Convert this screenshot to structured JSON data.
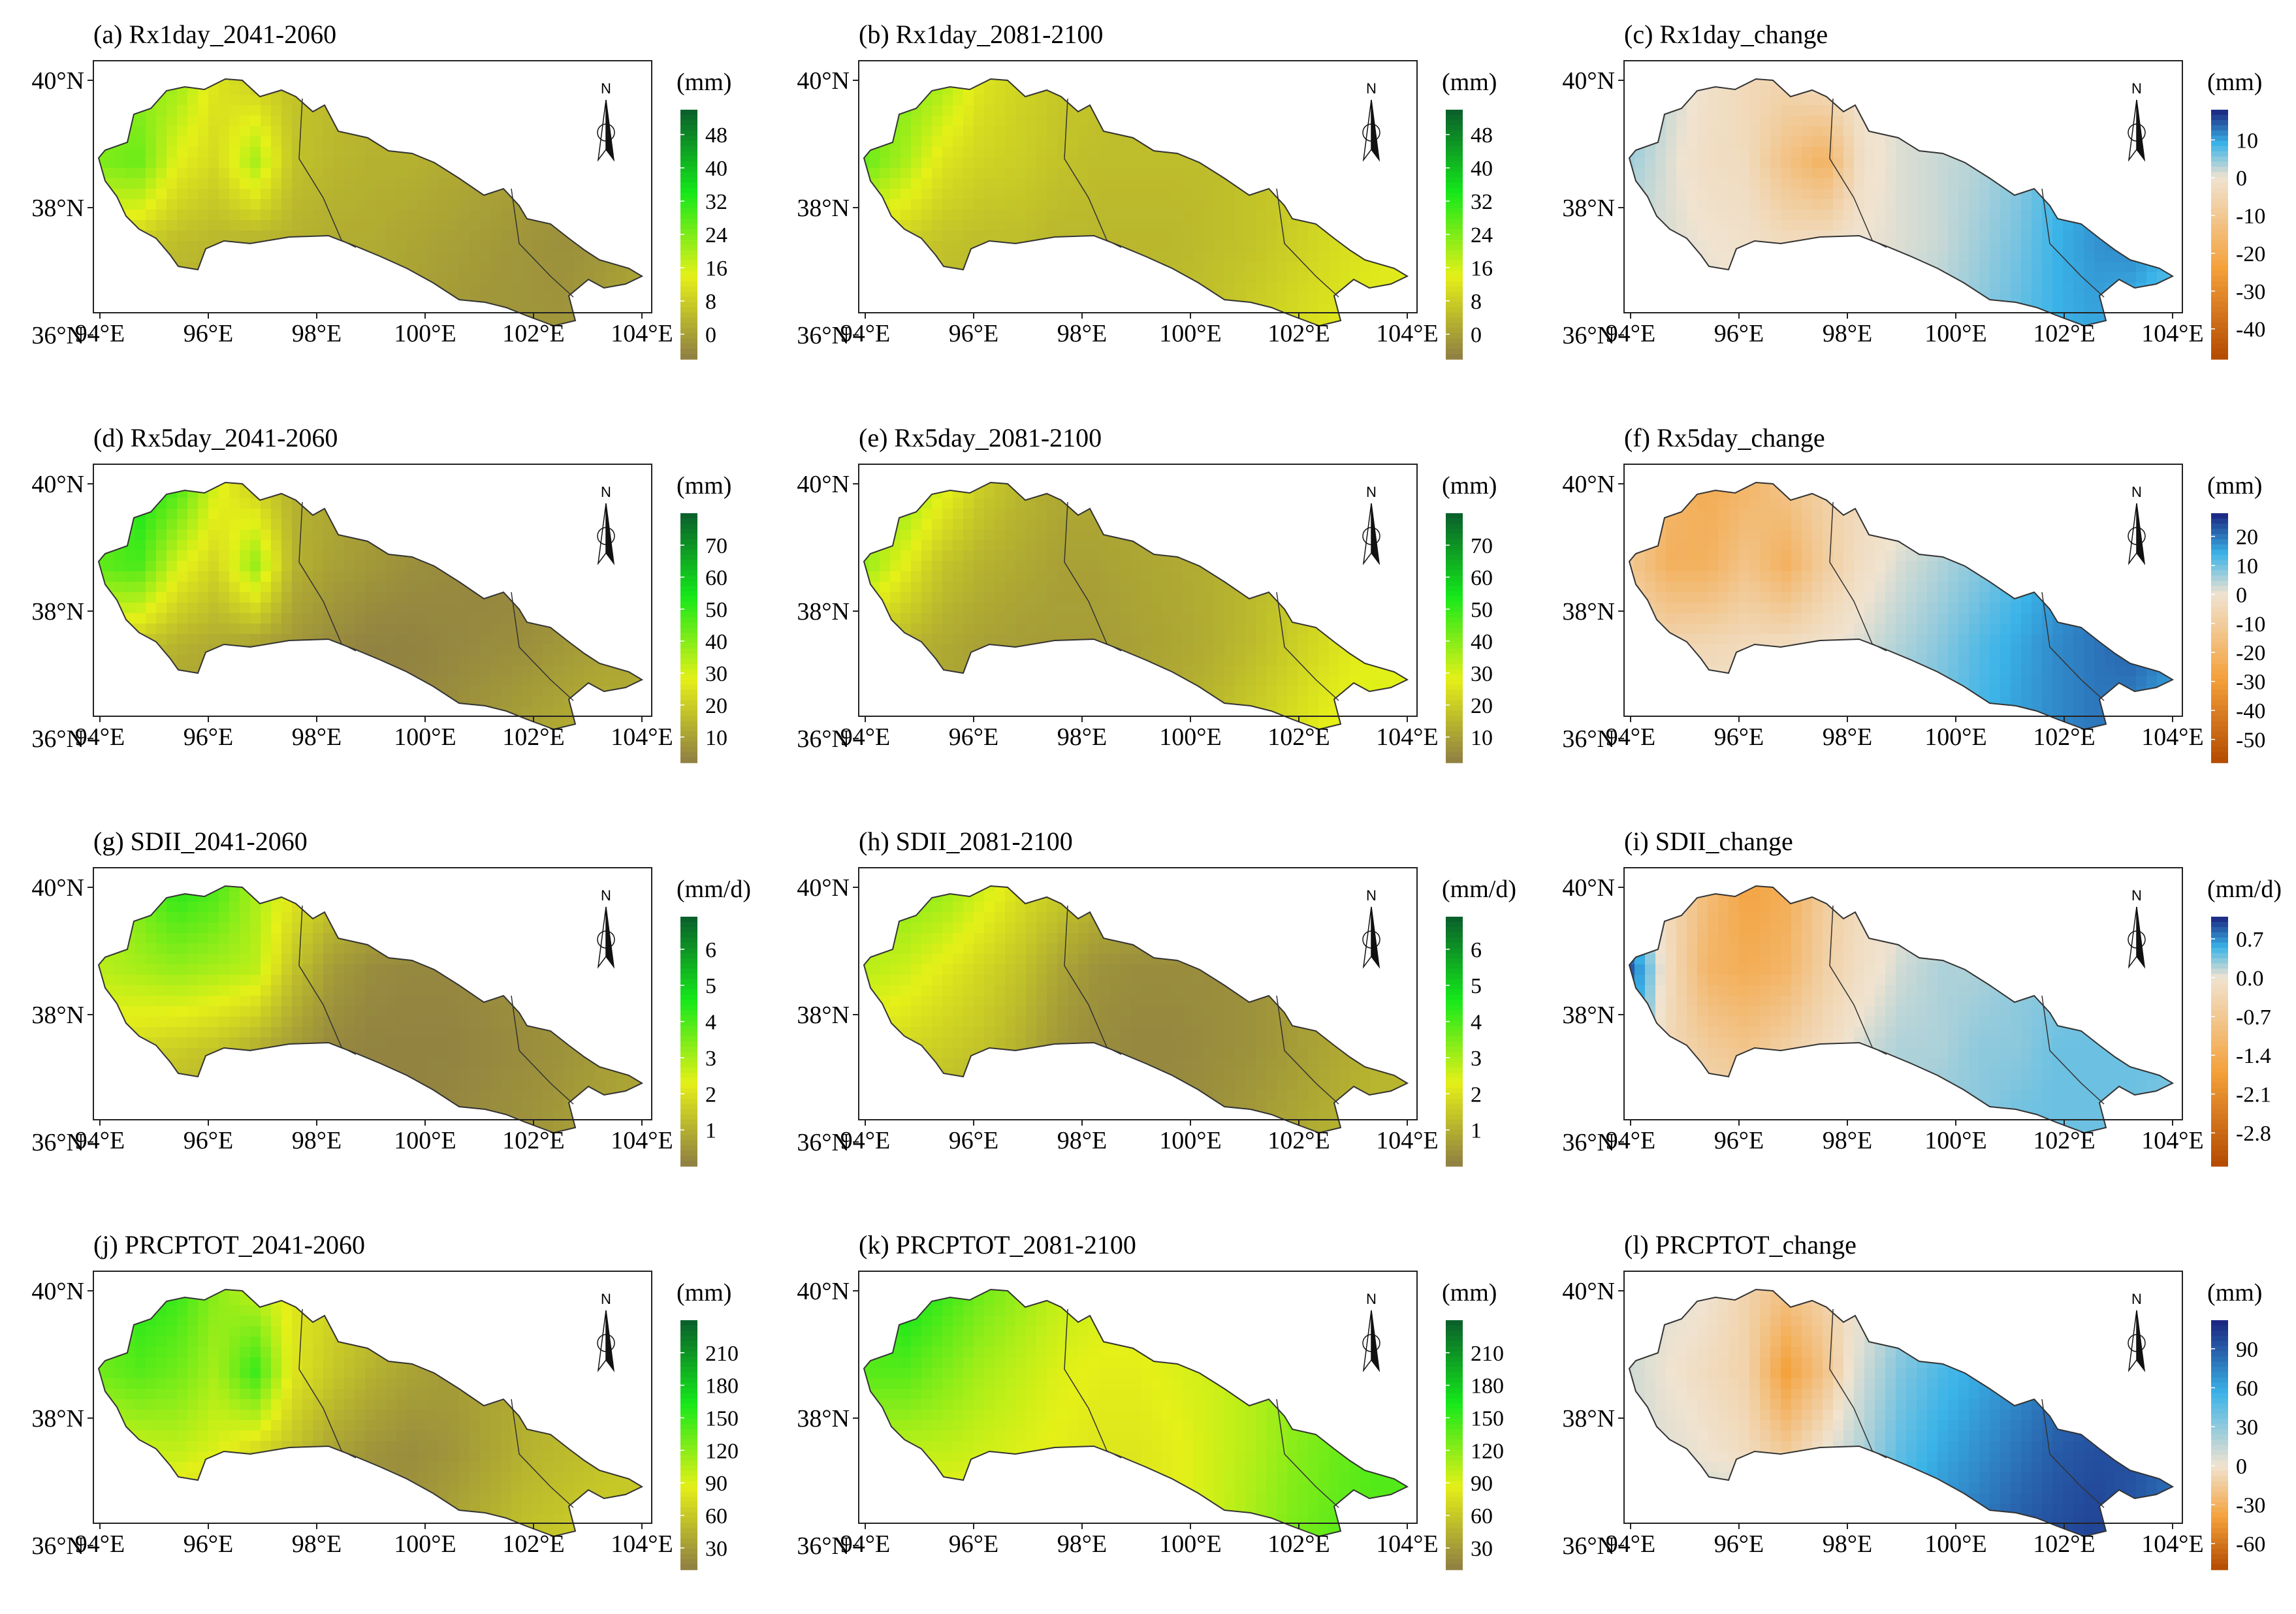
{
  "figure": {
    "colors": {
      "frame": "#222222",
      "region_outline": "#333333",
      "precip_ramp": [
        "#8e7e43",
        "#e5f018",
        "#15e81a",
        "#0a5e2c"
      ],
      "change_ramp": [
        "#b34a00",
        "#f4a13a",
        "#f0e3d0",
        "#3ab3e8",
        "#1a237e"
      ]
    },
    "icons": {
      "north_arrow": "north-arrow-icon"
    }
  },
  "chart_data": [
    {
      "id": "a",
      "type": "heatmap",
      "title": "(a) Rx1day_2041-2060",
      "unit": "(mm)",
      "colormap": "precip",
      "legend_ticks": [
        "48",
        "40",
        "32",
        "24",
        "16",
        "8",
        "0"
      ],
      "legend_range": [
        -6,
        54
      ],
      "xticks": [
        "94°E",
        "96°E",
        "98°E",
        "100°E",
        "102°E",
        "104°E"
      ],
      "yticks": [
        "40°N",
        "38°N",
        "36°N"
      ],
      "north_label": "N",
      "grid_values": [
        [
          20,
          22,
          21,
          12,
          8,
          6,
          5,
          4,
          4,
          3,
          2,
          1,
          1,
          0,
          0
        ],
        [
          24,
          26,
          14,
          10,
          20,
          6,
          4,
          3,
          3,
          2,
          1,
          0,
          -1,
          -2,
          -1
        ],
        [
          10,
          8,
          5,
          4,
          3,
          3,
          2,
          2,
          1,
          0,
          -1,
          -2,
          -3,
          -2,
          0
        ],
        [
          3,
          2,
          2,
          2,
          2,
          1,
          1,
          0,
          0,
          -1,
          -2,
          -2,
          -2,
          0,
          2
        ]
      ]
    },
    {
      "id": "b",
      "type": "heatmap",
      "title": "(b) Rx1day_2081-2100",
      "unit": "(mm)",
      "colormap": "precip",
      "legend_ticks": [
        "48",
        "40",
        "32",
        "24",
        "16",
        "8",
        "0"
      ],
      "legend_range": [
        -6,
        54
      ],
      "xticks": [
        "94°E",
        "96°E",
        "98°E",
        "100°E",
        "102°E",
        "104°E"
      ],
      "yticks": [
        "40°N",
        "38°N",
        "36°N"
      ],
      "north_label": "N",
      "grid_values": [
        [
          22,
          24,
          20,
          12,
          9,
          7,
          6,
          5,
          5,
          5,
          5,
          6,
          7,
          8,
          8
        ],
        [
          26,
          20,
          12,
          9,
          8,
          6,
          5,
          5,
          5,
          5,
          6,
          7,
          9,
          11,
          12
        ],
        [
          10,
          8,
          6,
          5,
          5,
          4,
          4,
          4,
          4,
          5,
          6,
          8,
          10,
          12,
          14
        ],
        [
          5,
          4,
          4,
          4,
          4,
          4,
          4,
          4,
          5,
          6,
          8,
          10,
          12,
          13,
          12
        ]
      ]
    },
    {
      "id": "c",
      "type": "heatmap",
      "title": "(c) Rx1day_change",
      "unit": "(mm)",
      "colormap": "change",
      "legend_ticks": [
        "10",
        "0",
        "-10",
        "-20",
        "-30",
        "-40"
      ],
      "legend_range": [
        -48,
        18
      ],
      "xticks": [
        "94°E",
        "96°E",
        "98°E",
        "100°E",
        "102°E",
        "104°E"
      ],
      "yticks": [
        "40°N",
        "38°N",
        "36°N"
      ],
      "north_label": "N",
      "grid_values": [
        [
          6,
          2,
          -1,
          -4,
          -5,
          -2,
          0,
          1,
          1,
          2,
          3,
          4,
          5,
          6,
          5
        ],
        [
          4,
          1,
          -2,
          -3,
          -12,
          -18,
          -1,
          1,
          2,
          3,
          5,
          8,
          10,
          12,
          10
        ],
        [
          2,
          1,
          0,
          -1,
          -3,
          -2,
          0,
          1,
          2,
          4,
          6,
          9,
          11,
          12,
          9
        ],
        [
          1,
          1,
          1,
          1,
          1,
          1,
          1,
          2,
          3,
          5,
          7,
          9,
          10,
          8,
          6
        ]
      ]
    },
    {
      "id": "d",
      "type": "heatmap",
      "title": "(d) Rx5day_2041-2060",
      "unit": "(mm)",
      "colormap": "precip",
      "legend_ticks": [
        "70",
        "60",
        "50",
        "40",
        "30",
        "20",
        "10"
      ],
      "legend_range": [
        2,
        80
      ],
      "xticks": [
        "94°E",
        "96°E",
        "98°E",
        "100°E",
        "102°E",
        "104°E"
      ],
      "yticks": [
        "40°N",
        "38°N",
        "36°N"
      ],
      "north_label": "N",
      "grid_values": [
        [
          40,
          55,
          48,
          30,
          20,
          14,
          12,
          10,
          10,
          8,
          7,
          6,
          5,
          5,
          6
        ],
        [
          45,
          48,
          30,
          22,
          38,
          14,
          10,
          8,
          6,
          5,
          4,
          4,
          3,
          4,
          6
        ],
        [
          22,
          18,
          14,
          12,
          10,
          8,
          5,
          3,
          3,
          4,
          5,
          6,
          8,
          10,
          12
        ],
        [
          12,
          10,
          9,
          8,
          6,
          4,
          3,
          3,
          4,
          6,
          8,
          10,
          12,
          14,
          12
        ]
      ]
    },
    {
      "id": "e",
      "type": "heatmap",
      "title": "(e) Rx5day_2081-2100",
      "unit": "(mm)",
      "colormap": "precip",
      "legend_ticks": [
        "70",
        "60",
        "50",
        "40",
        "30",
        "20",
        "10"
      ],
      "legend_range": [
        2,
        80
      ],
      "xticks": [
        "94°E",
        "96°E",
        "98°E",
        "100°E",
        "102°E",
        "104°E"
      ],
      "yticks": [
        "40°N",
        "38°N",
        "36°N"
      ],
      "north_label": "N",
      "grid_values": [
        [
          35,
          40,
          30,
          20,
          15,
          12,
          12,
          12,
          12,
          12,
          13,
          14,
          16,
          18,
          18
        ],
        [
          38,
          28,
          18,
          14,
          12,
          10,
          10,
          11,
          12,
          13,
          15,
          18,
          22,
          26,
          28
        ],
        [
          18,
          15,
          12,
          10,
          9,
          9,
          9,
          10,
          11,
          13,
          16,
          20,
          24,
          28,
          30
        ],
        [
          12,
          11,
          10,
          9,
          9,
          9,
          10,
          11,
          13,
          16,
          20,
          24,
          28,
          30,
          26
        ]
      ]
    },
    {
      "id": "f",
      "type": "heatmap",
      "title": "(f) Rx5day_change",
      "unit": "(mm)",
      "colormap": "change",
      "legend_ticks": [
        "20",
        "10",
        "0",
        "-10",
        "-20",
        "-30",
        "-40",
        "-50"
      ],
      "legend_range": [
        -58,
        28
      ],
      "xticks": [
        "94°E",
        "96°E",
        "98°E",
        "100°E",
        "102°E",
        "104°E"
      ],
      "yticks": [
        "40°N",
        "38°N",
        "36°N"
      ],
      "north_label": "N",
      "grid_values": [
        [
          -10,
          -20,
          -24,
          -20,
          -14,
          -8,
          -4,
          -2,
          0,
          2,
          5,
          8,
          10,
          14,
          12
        ],
        [
          -12,
          -22,
          -22,
          -14,
          -22,
          -10,
          -2,
          2,
          5,
          8,
          12,
          16,
          20,
          22,
          18
        ],
        [
          -4,
          -6,
          -5,
          -4,
          -3,
          -1,
          2,
          5,
          8,
          12,
          15,
          18,
          20,
          22,
          18
        ],
        [
          -1,
          -1,
          0,
          1,
          2,
          4,
          6,
          8,
          10,
          13,
          16,
          18,
          20,
          18,
          14
        ]
      ]
    },
    {
      "id": "g",
      "type": "heatmap",
      "title": "(g) SDII_2041-2060",
      "unit": "(mm/d)",
      "colormap": "precip",
      "legend_ticks": [
        "6",
        "5",
        "4",
        "3",
        "2",
        "1"
      ],
      "legend_range": [
        0,
        6.9
      ],
      "xticks": [
        "94°E",
        "96°E",
        "98°E",
        "100°E",
        "102°E",
        "104°E"
      ],
      "yticks": [
        "40°N",
        "38°N",
        "36°N"
      ],
      "north_label": "N",
      "grid_values": [
        [
          3.0,
          3.6,
          4.4,
          4.0,
          3.0,
          2.2,
          1.6,
          1.2,
          1.0,
          0.8,
          0.7,
          0.6,
          0.6,
          0.7,
          0.8
        ],
        [
          2.8,
          3.0,
          3.2,
          3.0,
          2.8,
          1.4,
          0.6,
          0.3,
          0.2,
          0.2,
          0.3,
          0.4,
          0.5,
          0.6,
          0.8
        ],
        [
          2.0,
          1.8,
          1.6,
          1.4,
          1.0,
          0.6,
          0.2,
          0.1,
          0.1,
          0.1,
          0.2,
          0.3,
          0.4,
          0.6,
          0.8
        ],
        [
          1.2,
          1.0,
          0.9,
          0.7,
          0.5,
          0.3,
          0.1,
          0.1,
          0.1,
          0.2,
          0.3,
          0.4,
          0.6,
          0.8,
          0.8
        ]
      ]
    },
    {
      "id": "h",
      "type": "heatmap",
      "title": "(h) SDII_2081-2100",
      "unit": "(mm/d)",
      "colormap": "precip",
      "legend_ticks": [
        "6",
        "5",
        "4",
        "3",
        "2",
        "1"
      ],
      "legend_range": [
        0,
        6.9
      ],
      "xticks": [
        "94°E",
        "96°E",
        "98°E",
        "100°E",
        "102°E",
        "104°E"
      ],
      "yticks": [
        "40°N",
        "38°N",
        "36°N"
      ],
      "north_label": "N",
      "grid_values": [
        [
          3.0,
          3.4,
          3.2,
          2.6,
          2.0,
          1.6,
          1.2,
          1.0,
          0.9,
          0.8,
          0.8,
          0.8,
          0.9,
          1.0,
          1.0
        ],
        [
          2.8,
          2.6,
          2.2,
          1.8,
          1.4,
          0.8,
          0.4,
          0.3,
          0.3,
          0.3,
          0.4,
          0.6,
          0.8,
          1.0,
          1.2
        ],
        [
          2.0,
          1.8,
          1.6,
          1.4,
          1.0,
          0.5,
          0.3,
          0.2,
          0.2,
          0.3,
          0.4,
          0.6,
          0.8,
          1.0,
          1.2
        ],
        [
          1.4,
          1.2,
          1.0,
          0.8,
          0.6,
          0.4,
          0.3,
          0.3,
          0.3,
          0.4,
          0.6,
          0.8,
          1.0,
          1.2,
          1.1
        ]
      ]
    },
    {
      "id": "i",
      "type": "heatmap",
      "title": "(i) SDII_change",
      "unit": "(mm/d)",
      "colormap": "change",
      "legend_ticks": [
        "0.7",
        "0.0",
        "-0.7",
        "-1.4",
        "-2.1",
        "-2.8"
      ],
      "legend_range": [
        -3.4,
        1.1
      ],
      "xticks": [
        "94°E",
        "96°E",
        "98°E",
        "100°E",
        "102°E",
        "104°E"
      ],
      "yticks": [
        "40°N",
        "38°N",
        "36°N"
      ],
      "north_label": "N",
      "grid_values": [
        [
          0.1,
          -0.3,
          -1.0,
          -1.6,
          -1.4,
          -0.6,
          -0.2,
          0.0,
          0.1,
          0.2,
          0.2,
          0.3,
          0.3,
          0.4,
          0.4
        ],
        [
          0.9,
          -0.2,
          -1.2,
          -1.4,
          -1.2,
          -0.5,
          -0.1,
          0.1,
          0.2,
          0.2,
          0.3,
          0.3,
          0.4,
          0.4,
          0.4
        ],
        [
          0.6,
          -0.3,
          -0.6,
          -0.8,
          -0.5,
          -0.2,
          0.1,
          0.2,
          0.2,
          0.3,
          0.3,
          0.4,
          0.4,
          0.4,
          0.4
        ],
        [
          0.2,
          0.0,
          -0.2,
          -0.2,
          -0.1,
          0.1,
          0.2,
          0.2,
          0.3,
          0.3,
          0.4,
          0.4,
          0.4,
          0.4,
          0.3
        ]
      ]
    },
    {
      "id": "j",
      "type": "heatmap",
      "title": "(j) PRCPTOT_2041-2060",
      "unit": "(mm)",
      "colormap": "precip",
      "legend_ticks": [
        "210",
        "180",
        "150",
        "120",
        "90",
        "60",
        "30"
      ],
      "legend_range": [
        10,
        240
      ],
      "xticks": [
        "94°E",
        "96°E",
        "98°E",
        "100°E",
        "102°E",
        "104°E"
      ],
      "yticks": [
        "40°N",
        "38°N",
        "36°N"
      ],
      "north_label": "N",
      "grid_values": [
        [
          120,
          160,
          150,
          120,
          100,
          80,
          70,
          60,
          55,
          50,
          45,
          40,
          40,
          45,
          50
        ],
        [
          130,
          140,
          130,
          110,
          150,
          80,
          60,
          45,
          35,
          30,
          35,
          40,
          45,
          50,
          55
        ],
        [
          90,
          95,
          100,
          90,
          70,
          55,
          35,
          25,
          20,
          25,
          35,
          45,
          50,
          55,
          60
        ],
        [
          60,
          60,
          55,
          50,
          40,
          30,
          20,
          20,
          25,
          35,
          45,
          55,
          60,
          65,
          60
        ]
      ]
    },
    {
      "id": "k",
      "type": "heatmap",
      "title": "(k) PRCPTOT_2081-2100",
      "unit": "(mm)",
      "colormap": "precip",
      "legend_ticks": [
        "210",
        "180",
        "150",
        "120",
        "90",
        "60",
        "30"
      ],
      "legend_range": [
        10,
        240
      ],
      "xticks": [
        "94°E",
        "96°E",
        "98°E",
        "100°E",
        "102°E",
        "104°E"
      ],
      "yticks": [
        "40°N",
        "38°N",
        "36°N"
      ],
      "north_label": "N",
      "grid_values": [
        [
          130,
          170,
          150,
          130,
          115,
          100,
          95,
          90,
          90,
          90,
          95,
          100,
          110,
          120,
          115
        ],
        [
          140,
          140,
          125,
          110,
          100,
          90,
          85,
          85,
          90,
          95,
          105,
          115,
          125,
          135,
          140
        ],
        [
          100,
          100,
          100,
          95,
          90,
          85,
          80,
          80,
          85,
          95,
          105,
          120,
          130,
          140,
          145
        ],
        [
          75,
          75,
          75,
          75,
          75,
          75,
          75,
          80,
          85,
          95,
          110,
          125,
          135,
          140,
          135
        ]
      ]
    },
    {
      "id": "l",
      "type": "heatmap",
      "title": "(l) PRCPTOT_change",
      "unit": "(mm)",
      "colormap": "change",
      "legend_ticks": [
        "90",
        "60",
        "30",
        "0",
        "-30",
        "-60"
      ],
      "legend_range": [
        -80,
        112
      ],
      "xticks": [
        "94°E",
        "96°E",
        "98°E",
        "100°E",
        "102°E",
        "104°E"
      ],
      "yticks": [
        "40°N",
        "38°N",
        "36°N"
      ],
      "north_label": "N",
      "grid_values": [
        [
          10,
          5,
          0,
          -10,
          -20,
          -10,
          0,
          20,
          35,
          40,
          50,
          55,
          60,
          70,
          70
        ],
        [
          10,
          0,
          -5,
          -10,
          -40,
          -20,
          10,
          35,
          50,
          60,
          70,
          80,
          85,
          90,
          85
        ],
        [
          10,
          5,
          0,
          -5,
          -15,
          0,
          20,
          45,
          60,
          70,
          80,
          90,
          95,
          95,
          85
        ],
        [
          15,
          15,
          15,
          20,
          25,
          35,
          50,
          60,
          70,
          80,
          90,
          95,
          100,
          90,
          80
        ]
      ]
    }
  ]
}
